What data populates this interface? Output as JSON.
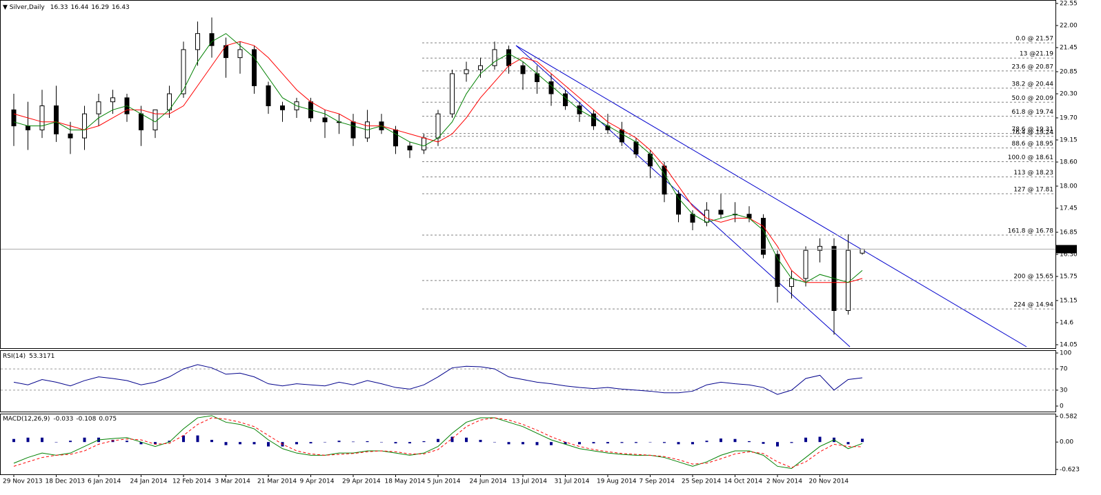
{
  "chart_data": [
    {
      "type": "candlestick",
      "title": "Silver,Daily",
      "categories": [
        "29 Nov 2013",
        null,
        null,
        "18 Dec 2013",
        null,
        null,
        "6 Jan 2014",
        null,
        null,
        "24 Jan 2014",
        null,
        null,
        "12 Feb 2014",
        null,
        null,
        "3 Mar 2014",
        null,
        null,
        "21 Mar 2014",
        null,
        null,
        "9 Apr 2014",
        null,
        null,
        "29 Apr 2014",
        null,
        null,
        "18 May 2014",
        null,
        null,
        "5 Jun 2014",
        null,
        null,
        "24 Jun 2014",
        null,
        null,
        "13 Jul 2014",
        null,
        null,
        "31 Jul 2014",
        null,
        null,
        "19 Aug 2014",
        null,
        null,
        "7 Sep 2014",
        null,
        null,
        "25 Sep 2014",
        null,
        null,
        "14 Oct 2014",
        null,
        null,
        "2 Nov 2014",
        null,
        null,
        "20 Nov 2014",
        null,
        null,
        null
      ],
      "open": [
        19.9,
        19.5,
        19.4,
        20.0,
        19.3,
        19.2,
        19.8,
        20.1,
        20.2,
        19.8,
        19.4,
        19.9,
        20.3,
        21.4,
        21.8,
        21.5,
        21.2,
        21.4,
        20.5,
        20.0,
        19.9,
        20.1,
        19.7,
        19.6,
        19.6,
        19.2,
        19.6,
        19.4,
        19.0,
        18.9,
        19.2,
        19.8,
        20.8,
        20.9,
        21.0,
        21.4,
        21.0,
        20.8,
        20.6,
        20.3,
        20.0,
        19.8,
        19.5,
        19.4,
        19.1,
        18.8,
        18.5,
        17.8,
        17.3,
        17.1,
        17.4,
        17.3,
        17.3,
        17.2,
        16.3,
        15.5,
        15.7,
        16.4,
        16.5,
        14.9,
        16.33
      ],
      "high": [
        20.3,
        20.1,
        20.4,
        20.5,
        19.6,
        20.0,
        20.3,
        20.4,
        20.3,
        20.0,
        19.9,
        20.5,
        21.6,
        22.1,
        22.2,
        21.7,
        21.6,
        21.5,
        20.6,
        20.1,
        20.2,
        20.2,
        19.9,
        19.8,
        19.8,
        19.9,
        19.8,
        19.5,
        19.1,
        19.3,
        19.9,
        20.9,
        21.1,
        21.2,
        21.6,
        21.5,
        21.1,
        21.0,
        20.8,
        20.4,
        20.1,
        19.9,
        19.8,
        19.6,
        19.2,
        18.9,
        18.6,
        17.9,
        17.4,
        17.6,
        17.8,
        17.6,
        17.5,
        17.3,
        16.4,
        15.9,
        16.5,
        16.7,
        16.7,
        16.8,
        16.44
      ],
      "low": [
        19.0,
        18.9,
        19.2,
        19.1,
        18.8,
        18.9,
        19.5,
        19.8,
        19.6,
        19.0,
        19.2,
        19.7,
        20.2,
        21.0,
        21.2,
        20.7,
        20.8,
        20.3,
        19.8,
        19.6,
        19.7,
        19.6,
        19.2,
        19.3,
        19.0,
        19.1,
        19.3,
        18.8,
        18.7,
        18.8,
        19.0,
        19.7,
        20.6,
        20.7,
        20.9,
        20.8,
        20.4,
        20.3,
        20.0,
        19.9,
        19.6,
        19.4,
        19.3,
        19.0,
        18.7,
        18.2,
        17.6,
        17.1,
        16.9,
        17.0,
        17.2,
        17.1,
        17.1,
        16.2,
        15.1,
        15.2,
        15.5,
        16.1,
        14.3,
        14.8,
        16.29
      ],
      "close": [
        19.5,
        19.4,
        20.0,
        19.3,
        19.2,
        19.8,
        20.1,
        20.2,
        19.8,
        19.4,
        19.9,
        20.3,
        21.4,
        21.8,
        21.5,
        21.2,
        21.4,
        20.5,
        20.0,
        19.9,
        20.1,
        19.7,
        19.6,
        19.6,
        19.2,
        19.6,
        19.4,
        19.0,
        18.9,
        19.2,
        19.8,
        20.8,
        20.9,
        21.0,
        21.4,
        21.0,
        20.8,
        20.6,
        20.3,
        20.0,
        19.8,
        19.5,
        19.4,
        19.1,
        18.8,
        18.5,
        17.8,
        17.3,
        17.1,
        17.4,
        17.3,
        17.3,
        17.2,
        16.3,
        15.5,
        15.7,
        16.4,
        16.5,
        14.9,
        16.4,
        16.43
      ],
      "series": [
        {
          "color": "#ff0000",
          "values": [
            19.8,
            19.7,
            19.6,
            19.6,
            19.5,
            19.4,
            19.5,
            19.7,
            19.9,
            19.9,
            19.8,
            19.8,
            20.0,
            20.5,
            21.0,
            21.5,
            21.6,
            21.5,
            21.2,
            20.8,
            20.4,
            20.1,
            19.9,
            19.8,
            19.6,
            19.5,
            19.5,
            19.4,
            19.3,
            19.2,
            19.1,
            19.3,
            19.7,
            20.2,
            20.6,
            21.0,
            21.2,
            21.1,
            20.8,
            20.5,
            20.2,
            19.9,
            19.6,
            19.4,
            19.2,
            18.9,
            18.5,
            18.0,
            17.5,
            17.2,
            17.1,
            17.2,
            17.2,
            17.0,
            16.5,
            15.9,
            15.6,
            15.6,
            15.6,
            15.6,
            15.7
          ]
        },
        {
          "color": "#008000",
          "values": [
            19.6,
            19.5,
            19.5,
            19.6,
            19.4,
            19.4,
            19.7,
            19.9,
            20.0,
            19.8,
            19.6,
            19.9,
            20.4,
            21.1,
            21.6,
            21.8,
            21.5,
            21.2,
            20.7,
            20.2,
            20.0,
            19.9,
            19.8,
            19.6,
            19.5,
            19.4,
            19.5,
            19.3,
            19.1,
            19.0,
            19.2,
            19.6,
            20.3,
            20.8,
            21.1,
            21.3,
            21.1,
            20.8,
            20.5,
            20.2,
            19.9,
            19.7,
            19.5,
            19.3,
            19.1,
            18.8,
            18.3,
            17.7,
            17.3,
            17.1,
            17.2,
            17.3,
            17.2,
            16.9,
            16.2,
            15.7,
            15.6,
            15.8,
            15.7,
            15.6,
            15.9
          ]
        }
      ],
      "levels": [
        {
          "value": 21.57,
          "label": "0.0 @ 21.57"
        },
        {
          "value": 21.19,
          "label": "13 @21.19"
        },
        {
          "value": 20.87,
          "label": "23.6 @ 20.87"
        },
        {
          "value": 20.44,
          "label": "38.2 @ 20.44"
        },
        {
          "value": 20.09,
          "label": "50.0 @ 20.09"
        },
        {
          "value": 19.74,
          "label": "61.8 @ 19.74"
        },
        {
          "value": 19.31,
          "label": "78.6 @ 19.31"
        },
        {
          "value": 19.24,
          "label": "76.4 @ 19.24"
        },
        {
          "value": 18.95,
          "label": "88.6 @ 18.95"
        },
        {
          "value": 18.61,
          "label": "100.0 @ 18.61"
        },
        {
          "value": 18.23,
          "label": "113 @ 18.23"
        },
        {
          "value": 17.81,
          "label": "127 @ 17.81"
        },
        {
          "value": 16.78,
          "label": "161.8 @ 16.78"
        },
        {
          "value": 15.65,
          "label": "200 @ 15.65"
        },
        {
          "value": 14.94,
          "label": "224 @ 14.94"
        }
      ],
      "ylim": [
        14.05,
        22.55
      ],
      "yticks": [
        14.05,
        14.6,
        15.15,
        15.75,
        {
          "value": 16.3,
          "label": "16.30"
        },
        16.85,
        17.45,
        {
          "value": 18,
          "label": "18.00"
        },
        {
          "value": 18.6,
          "label": "18.60"
        },
        19.15,
        {
          "value": 19.7,
          "label": "19.70"
        },
        {
          "value": 20.3,
          "label": "20.30"
        },
        20.85,
        21.45,
        {
          "value": 22,
          "label": "22.00"
        },
        22.55
      ]
    },
    {
      "type": "line",
      "title": "RSI(14)",
      "series": [
        {
          "color": "#00008b",
          "values": [
            45,
            40,
            50,
            45,
            38,
            48,
            55,
            52,
            48,
            40,
            45,
            55,
            70,
            78,
            72,
            60,
            62,
            55,
            42,
            38,
            42,
            40,
            38,
            45,
            40,
            48,
            42,
            35,
            32,
            40,
            55,
            72,
            75,
            74,
            70,
            55,
            50,
            45,
            42,
            38,
            35,
            33,
            35,
            32,
            30,
            28,
            25,
            25,
            28,
            40,
            45,
            42,
            40,
            35,
            22,
            30,
            52,
            58,
            30,
            50,
            53.3171
          ]
        }
      ],
      "ylim": [
        0,
        100
      ],
      "yticks": [
        0,
        30,
        70,
        100
      ]
    },
    {
      "type": "macd",
      "title": "MACD(12,26,9)",
      "series": [
        {
          "color": "#008000",
          "values": [
            -0.48,
            -0.35,
            -0.25,
            -0.3,
            -0.25,
            -0.1,
            0.05,
            0.08,
            0.1,
            0.0,
            -0.1,
            0.0,
            0.3,
            0.55,
            0.6,
            0.45,
            0.4,
            0.3,
            0.05,
            -0.15,
            -0.25,
            -0.3,
            -0.3,
            -0.25,
            -0.25,
            -0.2,
            -0.2,
            -0.25,
            -0.3,
            -0.25,
            -0.1,
            0.2,
            0.45,
            0.55,
            0.55,
            0.45,
            0.35,
            0.2,
            0.05,
            -0.05,
            -0.15,
            -0.2,
            -0.25,
            -0.28,
            -0.3,
            -0.3,
            -0.35,
            -0.45,
            -0.55,
            -0.45,
            -0.3,
            -0.2,
            -0.2,
            -0.3,
            -0.55,
            -0.6,
            -0.35,
            -0.1,
            0.05,
            -0.15,
            -0.033
          ]
        },
        {
          "color": "#ff0000",
          "dashed": true,
          "values": [
            -0.55,
            -0.45,
            -0.35,
            -0.3,
            -0.28,
            -0.2,
            -0.05,
            0.03,
            0.07,
            0.05,
            -0.05,
            -0.03,
            0.15,
            0.4,
            0.55,
            0.52,
            0.45,
            0.35,
            0.15,
            -0.05,
            -0.2,
            -0.27,
            -0.3,
            -0.28,
            -0.26,
            -0.22,
            -0.2,
            -0.22,
            -0.27,
            -0.27,
            -0.17,
            0.08,
            0.35,
            0.5,
            0.55,
            0.5,
            0.4,
            0.27,
            0.12,
            0.0,
            -0.1,
            -0.17,
            -0.22,
            -0.26,
            -0.28,
            -0.3,
            -0.33,
            -0.4,
            -0.5,
            -0.48,
            -0.38,
            -0.27,
            -0.22,
            -0.26,
            -0.45,
            -0.58,
            -0.45,
            -0.22,
            -0.05,
            -0.1,
            -0.108
          ]
        }
      ],
      "histogram": {
        "color": "#00008b",
        "values": [
          0.07,
          0.1,
          0.1,
          0.0,
          0.03,
          0.1,
          0.1,
          0.05,
          0.03,
          -0.05,
          -0.05,
          0.03,
          0.15,
          0.15,
          0.05,
          -0.07,
          -0.05,
          -0.05,
          -0.1,
          -0.1,
          -0.05,
          -0.03,
          0.0,
          0.03,
          0.01,
          0.02,
          0.0,
          -0.03,
          -0.03,
          0.02,
          0.07,
          0.12,
          0.1,
          0.05,
          0.0,
          -0.05,
          -0.05,
          -0.07,
          -0.07,
          -0.05,
          -0.05,
          -0.03,
          -0.03,
          -0.02,
          -0.02,
          0.0,
          -0.02,
          -0.05,
          -0.05,
          0.03,
          0.08,
          0.07,
          0.02,
          -0.04,
          -0.1,
          -0.02,
          0.1,
          0.12,
          0.1,
          -0.05,
          0.075
        ]
      },
      "ylim": [
        -0.623,
        0.582
      ],
      "yticks": [
        -0.623,
        {
          "value": 0,
          "label": "0.00"
        },
        0.582
      ]
    }
  ]
}
